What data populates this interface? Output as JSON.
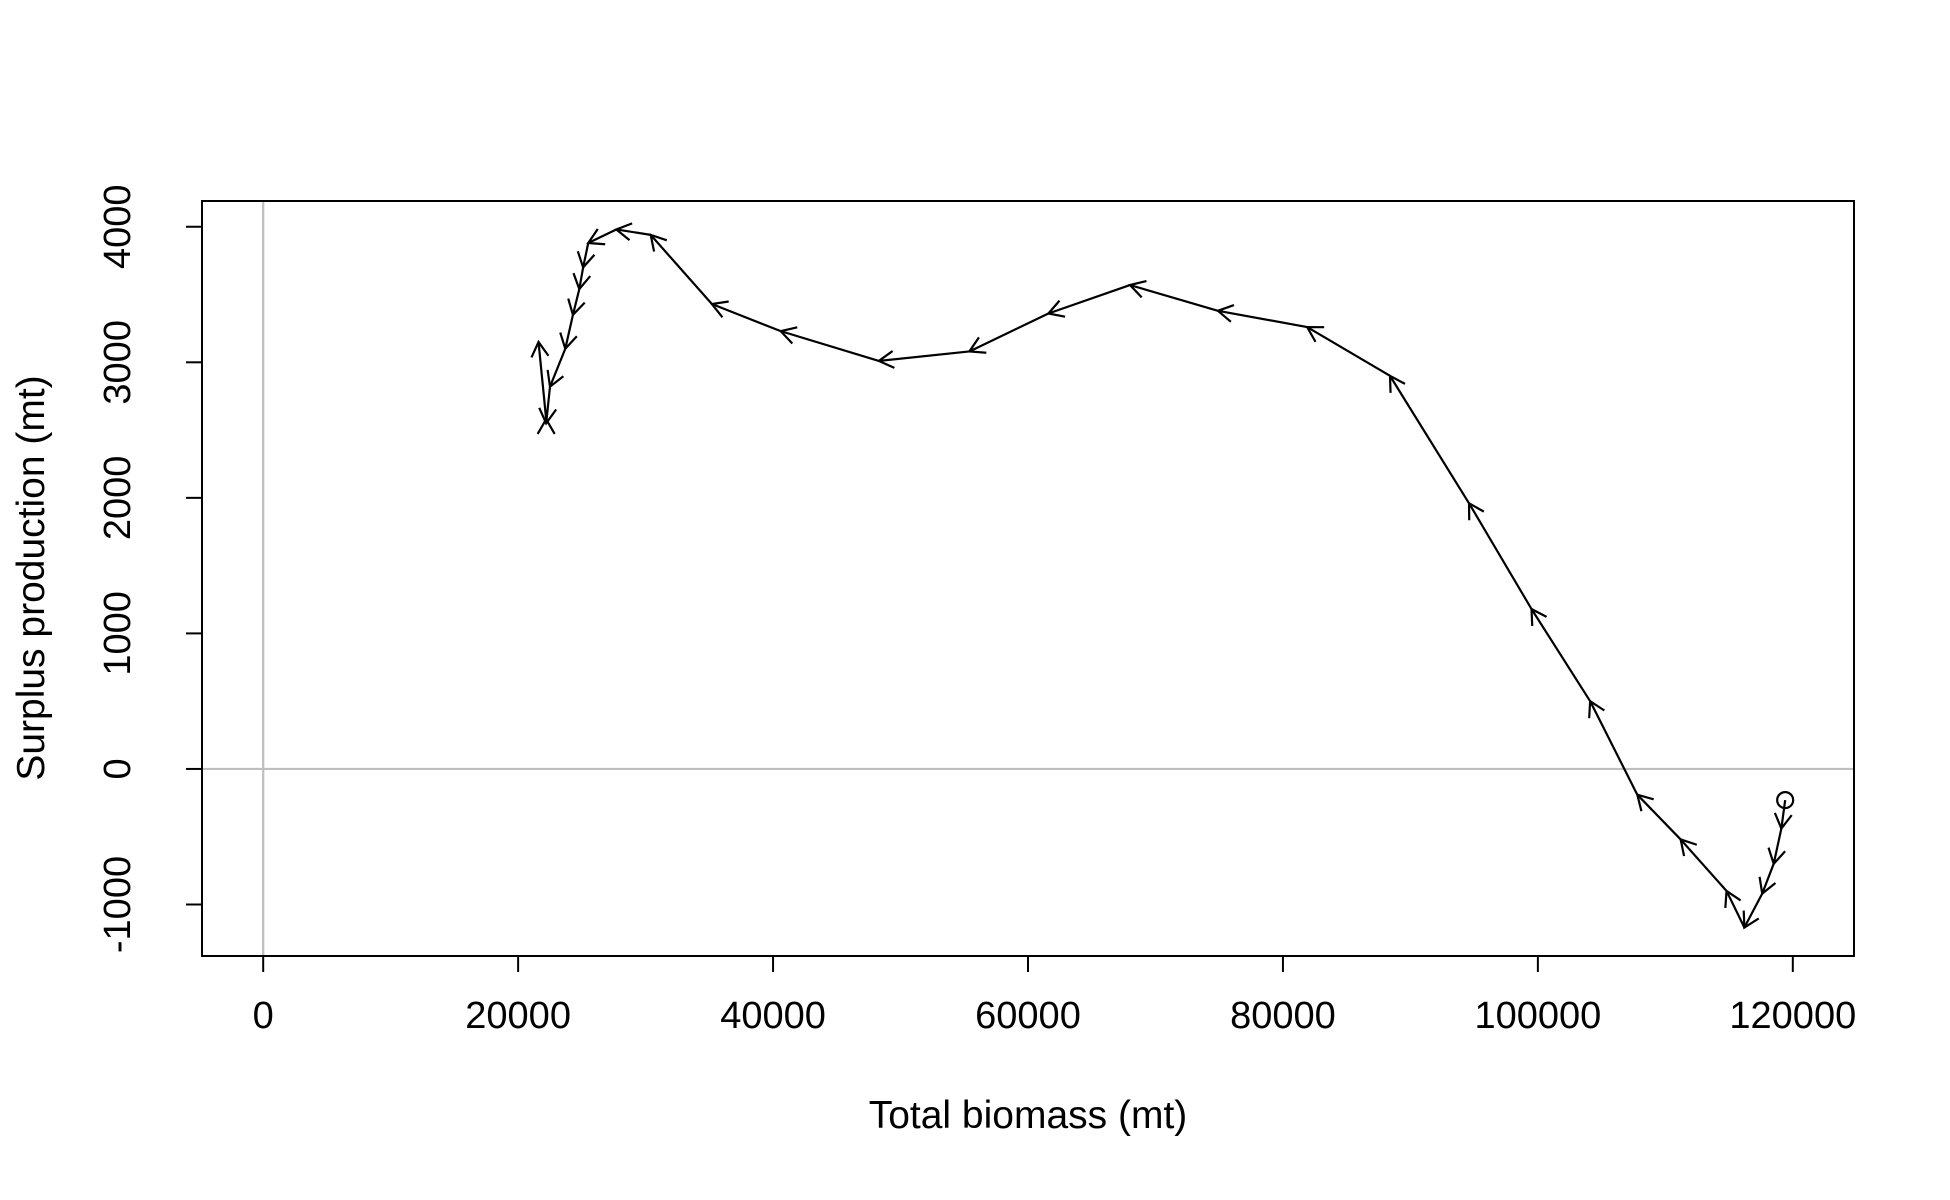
{
  "chart_data": {
    "type": "line",
    "title": "",
    "xlabel": "Total biomass (mt)",
    "ylabel": "Surplus production (mt)",
    "xlim": [
      -4800,
      124800
    ],
    "ylim": [
      -1380,
      4190
    ],
    "xticks": [
      0,
      20000,
      40000,
      60000,
      80000,
      100000,
      120000
    ],
    "yticks": [
      -1000,
      0,
      1000,
      2000,
      3000,
      4000
    ],
    "reference_lines": {
      "h": 0,
      "v": 0,
      "color": "#bebebe"
    },
    "start_marker": "open-circle",
    "arrows": true,
    "line_color": "#000000",
    "series": [
      {
        "x": [
          119400,
          119100,
          118500,
          117600,
          116200,
          114800,
          111200,
          107800,
          104100,
          99500,
          94600,
          88400,
          81900,
          74900,
          68000,
          61600,
          55400,
          48300,
          40600,
          35200,
          30400,
          27700,
          25500,
          25100,
          24800,
          24300,
          23700,
          22500,
          22200,
          22200,
          21600
        ],
        "y": [
          -230,
          -440,
          -700,
          -920,
          -1170,
          -900,
          -520,
          -190,
          500,
          1180,
          1960,
          2900,
          3260,
          3380,
          3570,
          3360,
          3080,
          3010,
          3230,
          3430,
          3940,
          3980,
          3880,
          3700,
          3540,
          3350,
          3100,
          2820,
          2550,
          2580,
          3150
        ]
      }
    ]
  }
}
